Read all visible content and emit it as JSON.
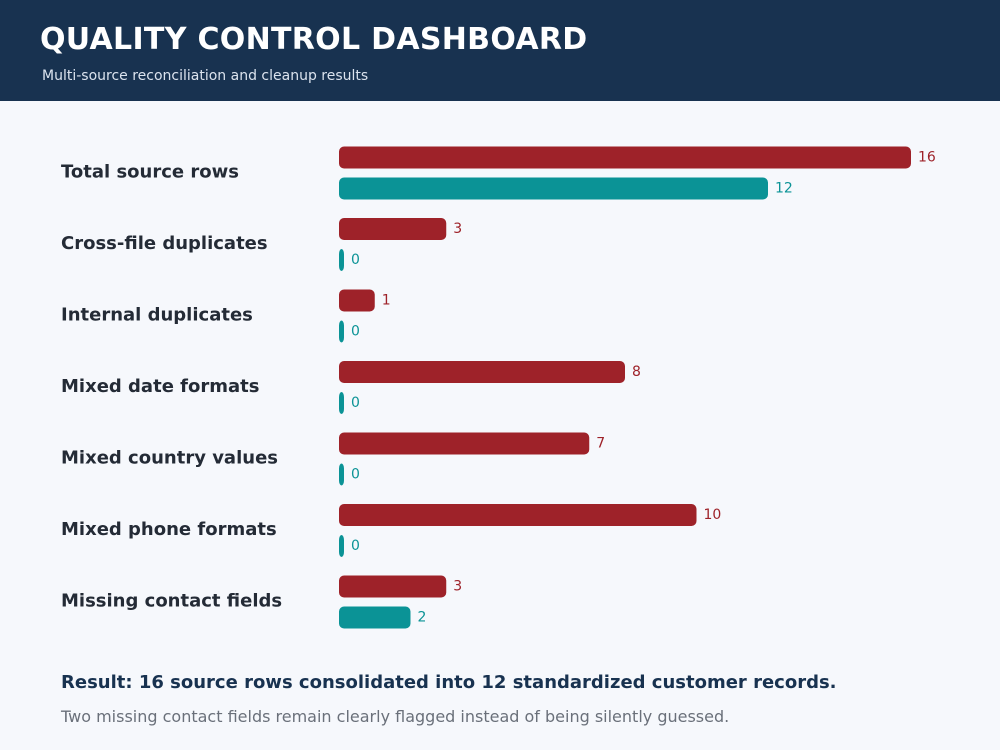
{
  "header": {
    "title": "QUALITY CONTROL DASHBOARD",
    "subtitle": "Multi-source reconciliation and cleanup results"
  },
  "colors": {
    "header_bg": "#183250",
    "series_before": "#9e2229",
    "series_after": "#0b9396"
  },
  "chart_data": {
    "type": "bar",
    "orientation": "horizontal",
    "categories": [
      "Total source rows",
      "Cross-file duplicates",
      "Internal duplicates",
      "Mixed date formats",
      "Mixed country values",
      "Mixed phone formats",
      "Missing contact fields"
    ],
    "series": [
      {
        "color": "#9e2229",
        "values": [
          16,
          3,
          1,
          8,
          7,
          10,
          3
        ]
      },
      {
        "color": "#0b9396",
        "values": [
          12,
          0,
          0,
          0,
          0,
          0,
          2
        ]
      }
    ],
    "xlim": [
      0,
      16
    ],
    "grid": false,
    "legend": "none"
  },
  "footer": {
    "result": "Result: 16 source rows consolidated into 12 standardized customer records.",
    "note": "Two missing contact fields remain clearly flagged instead of being silently guessed."
  }
}
